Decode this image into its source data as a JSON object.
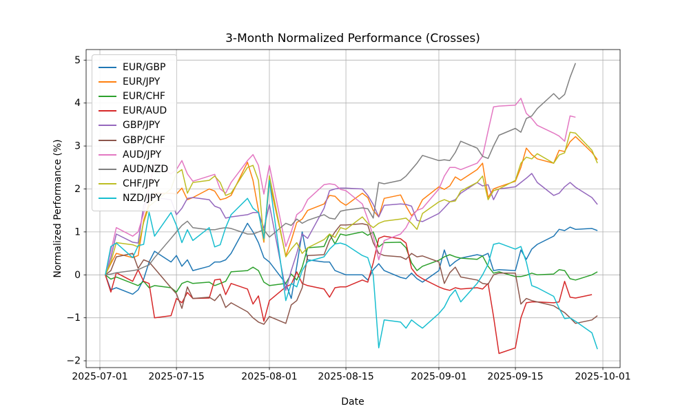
{
  "chart_data": {
    "type": "line",
    "title": "3-Month Normalized Performance (Crosses)",
    "xlabel": "Date",
    "ylabel": "Normalized Performance (%)",
    "grid": true,
    "legend_position": "upper left",
    "x_tick_labels": [
      "2025-07-01",
      "2025-07-15",
      "2025-08-01",
      "2025-08-15",
      "2025-09-01",
      "2025-09-15",
      "2025-10-01"
    ],
    "y_ticks": [
      -2,
      -1,
      0,
      1,
      2,
      3,
      4,
      5
    ],
    "ylim": [
      -2.16,
      5.25
    ],
    "dates": [
      "2025-07-02",
      "2025-07-03",
      "2025-07-04",
      "2025-07-07",
      "2025-07-08",
      "2025-07-09",
      "2025-07-10",
      "2025-07-11",
      "2025-07-14",
      "2025-07-15",
      "2025-07-16",
      "2025-07-17",
      "2025-07-18",
      "2025-07-21",
      "2025-07-22",
      "2025-07-23",
      "2025-07-24",
      "2025-07-25",
      "2025-07-28",
      "2025-07-29",
      "2025-07-30",
      "2025-07-31",
      "2025-08-01",
      "2025-08-04",
      "2025-08-05",
      "2025-08-06",
      "2025-08-07",
      "2025-08-08",
      "2025-08-11",
      "2025-08-12",
      "2025-08-13",
      "2025-08-14",
      "2025-08-15",
      "2025-08-18",
      "2025-08-19",
      "2025-08-20",
      "2025-08-21",
      "2025-08-22",
      "2025-08-25",
      "2025-08-26",
      "2025-08-27",
      "2025-08-28",
      "2025-08-29",
      "2025-09-01",
      "2025-09-02",
      "2025-09-03",
      "2025-09-04",
      "2025-09-05",
      "2025-09-08",
      "2025-09-09",
      "2025-09-10",
      "2025-09-11",
      "2025-09-12",
      "2025-09-15",
      "2025-09-16",
      "2025-09-17",
      "2025-09-18",
      "2025-09-19",
      "2025-09-22",
      "2025-09-23",
      "2025-09-24",
      "2025-09-25",
      "2025-09-26",
      "2025-09-29",
      "2025-09-30"
    ],
    "series": [
      {
        "name": "EUR/GBP",
        "color": "#1f77b4",
        "values": [
          0,
          -0.35,
          -0.3,
          -0.45,
          -0.35,
          -0.1,
          0.3,
          0.55,
          0.3,
          0.45,
          0.2,
          0.35,
          0.1,
          0.2,
          0.3,
          0.3,
          0.35,
          0.5,
          1.2,
          1.0,
          0.75,
          0.4,
          0.3,
          -0.2,
          -0.55,
          0.2,
          1.0,
          0.35,
          0.3,
          0.3,
          0.1,
          0.05,
          0.0,
          0.0,
          -0.12,
          0.12,
          0.26,
          0.1,
          -0.06,
          -0.09,
          0.04,
          -0.09,
          -0.17,
          0.1,
          0.58,
          0.2,
          0.31,
          0.39,
          0.47,
          0.44,
          0.5,
          0.1,
          0.12,
          0.1,
          0.58,
          0.36,
          0.6,
          0.71,
          0.9,
          1.06,
          1.03,
          1.11,
          1.06,
          1.08,
          1.03
        ]
      },
      {
        "name": "EUR/JPY",
        "color": "#ff7f0e",
        "values": [
          0,
          0.26,
          0.5,
          0.4,
          0.45,
          1.27,
          1.67,
          1.9,
          1.9,
          1.88,
          2.02,
          1.75,
          1.8,
          2.0,
          1.95,
          1.75,
          1.78,
          1.85,
          2.62,
          2.2,
          1.5,
          0.76,
          2.18,
          0.44,
          0.8,
          1.22,
          1.3,
          1.5,
          1.65,
          1.85,
          1.83,
          1.7,
          1.62,
          1.9,
          1.8,
          1.5,
          1.35,
          1.78,
          1.86,
          1.6,
          1.38,
          1.5,
          1.75,
          2.05,
          1.99,
          2.07,
          2.28,
          2.2,
          2.45,
          2.6,
          1.8,
          2.0,
          2.05,
          2.18,
          2.5,
          2.95,
          2.8,
          2.7,
          2.6,
          2.9,
          2.87,
          3.1,
          3.22,
          2.85,
          2.68
        ]
      },
      {
        "name": "EUR/CHF",
        "color": "#2ca02c",
        "values": [
          0,
          -0.1,
          -0.05,
          -0.2,
          -0.25,
          -0.15,
          -0.3,
          -0.25,
          -0.3,
          -0.4,
          -0.2,
          -0.15,
          -0.2,
          -0.17,
          -0.25,
          -0.2,
          -0.15,
          0.07,
          0.1,
          0.18,
          0.1,
          -0.17,
          -0.25,
          -0.2,
          0.02,
          -0.12,
          0.18,
          0.63,
          0.66,
          0.95,
          0.72,
          0.95,
          0.92,
          1.0,
          0.92,
          1.0,
          0.65,
          0.75,
          0.76,
          0.63,
          0.28,
          0.1,
          0.2,
          0.34,
          0.42,
          0.47,
          0.42,
          0.39,
          0.36,
          0.44,
          0.2,
          0.04,
          0.07,
          -0.04,
          -0.04,
          -0.01,
          0.04,
          0.0,
          0.02,
          0.12,
          0.1,
          -0.09,
          -0.12,
          0.0,
          0.07
        ]
      },
      {
        "name": "EUR/AUD",
        "color": "#d62728",
        "values": [
          0,
          -0.4,
          0.05,
          -0.15,
          0.12,
          -0.15,
          -0.2,
          -1.0,
          -0.95,
          -0.55,
          -0.65,
          -0.41,
          -0.55,
          -0.54,
          -0.12,
          -0.1,
          -0.46,
          -0.2,
          -0.33,
          -0.68,
          -0.49,
          -1.08,
          -0.6,
          -0.28,
          -0.22,
          0.07,
          -0.2,
          -0.25,
          -0.33,
          -0.52,
          -0.3,
          -0.28,
          -0.28,
          -0.12,
          -0.17,
          0.28,
          0.85,
          0.9,
          0.84,
          0.74,
          0.15,
          -0.01,
          -0.09,
          -0.28,
          -0.33,
          -0.36,
          -0.3,
          -0.33,
          -0.3,
          -0.33,
          -0.2,
          -0.97,
          -1.83,
          -1.7,
          -1.0,
          -0.65,
          -0.63,
          -0.63,
          -0.65,
          -0.63,
          -0.15,
          -0.52,
          -0.54,
          -0.46,
          null
        ]
      },
      {
        "name": "GBP/JPY",
        "color": "#9467bd",
        "values": [
          0,
          0.4,
          0.95,
          0.76,
          0.74,
          1.62,
          1.85,
          1.8,
          1.75,
          1.4,
          1.55,
          1.78,
          1.8,
          1.75,
          1.6,
          1.55,
          1.32,
          1.35,
          1.4,
          1.45,
          1.45,
          1.08,
          1.64,
          -0.36,
          0.1,
          0.5,
          0.95,
          0.85,
          1.55,
          1.96,
          2.0,
          2.02,
          2.02,
          2.0,
          1.85,
          1.64,
          1.35,
          1.62,
          1.65,
          1.64,
          1.6,
          1.27,
          1.24,
          1.43,
          1.56,
          1.7,
          1.75,
          1.9,
          2.15,
          2.07,
          2.1,
          1.75,
          2.0,
          2.05,
          2.15,
          2.25,
          2.36,
          2.15,
          1.85,
          1.9,
          2.05,
          2.15,
          2.04,
          1.8,
          1.64
        ]
      },
      {
        "name": "GBP/CHF",
        "color": "#8c564b",
        "values": [
          0,
          0.1,
          0.42,
          0.5,
          0.15,
          0.35,
          0.3,
          0.15,
          -0.3,
          -0.44,
          -0.78,
          -0.28,
          -0.55,
          -0.52,
          -0.6,
          -0.45,
          -0.76,
          -0.65,
          -0.86,
          -1.0,
          -1.1,
          -1.15,
          -0.97,
          -1.13,
          -0.7,
          -0.6,
          -0.3,
          0.45,
          0.47,
          0.8,
          1.0,
          1.16,
          1.16,
          1.19,
          1.16,
          0.75,
          0.5,
          0.45,
          0.42,
          0.36,
          0.5,
          0.42,
          0.44,
          0.3,
          -0.2,
          0.05,
          0.18,
          -0.05,
          -0.12,
          -0.2,
          -0.22,
          0.0,
          0.04,
          0.04,
          -0.68,
          -0.55,
          -0.6,
          -0.63,
          -0.72,
          -0.8,
          -0.88,
          -1.0,
          -1.13,
          -1.05,
          -0.95
        ]
      },
      {
        "name": "AUD/JPY",
        "color": "#e377c2",
        "values": [
          0,
          0.55,
          1.1,
          0.9,
          1.0,
          1.43,
          2.05,
          2.6,
          2.35,
          2.45,
          2.66,
          2.35,
          2.18,
          2.3,
          2.34,
          2.0,
          1.9,
          2.15,
          2.66,
          2.8,
          2.55,
          1.88,
          2.55,
          0.66,
          1.0,
          1.4,
          1.5,
          1.75,
          2.1,
          2.12,
          2.1,
          1.99,
          1.96,
          1.65,
          1.3,
          0.9,
          0.35,
          0.8,
          0.95,
          1.1,
          1.35,
          1.5,
          1.55,
          2.0,
          2.3,
          2.5,
          2.5,
          2.45,
          2.6,
          2.76,
          3.35,
          3.91,
          3.93,
          3.95,
          4.11,
          3.76,
          3.64,
          3.48,
          3.3,
          3.23,
          3.11,
          3.7,
          3.67,
          null,
          null
        ]
      },
      {
        "name": "AUD/NZD",
        "color": "#7f7f7f",
        "values": [
          0,
          0.02,
          0.05,
          0.1,
          0.12,
          0.18,
          0.23,
          0.4,
          0.85,
          1.0,
          1.15,
          1.25,
          1.1,
          1.05,
          1.05,
          1.08,
          1.1,
          1.08,
          0.95,
          0.95,
          1.0,
          1.05,
          0.88,
          1.2,
          1.15,
          1.3,
          1.2,
          1.27,
          1.4,
          1.32,
          1.3,
          1.48,
          1.51,
          1.56,
          1.54,
          1.32,
          2.15,
          2.12,
          2.2,
          2.3,
          2.45,
          2.6,
          2.78,
          2.66,
          2.68,
          2.66,
          2.85,
          3.11,
          2.95,
          2.76,
          2.71,
          3.0,
          3.25,
          3.41,
          3.32,
          3.64,
          3.7,
          3.87,
          4.22,
          4.09,
          4.2,
          4.6,
          4.93,
          null,
          null
        ]
      },
      {
        "name": "CHF/JPY",
        "color": "#bcbd22",
        "values": [
          0,
          0.3,
          0.75,
          0.7,
          0.65,
          1.22,
          1.6,
          1.7,
          2.0,
          2.36,
          2.45,
          1.9,
          2.15,
          2.2,
          2.3,
          2.15,
          1.85,
          1.9,
          2.5,
          2.55,
          2.2,
          0.8,
          2.31,
          0.42,
          0.6,
          0.75,
          0.5,
          0.63,
          0.82,
          0.95,
          0.87,
          1.1,
          1.06,
          1.35,
          1.2,
          1.1,
          1.2,
          1.25,
          1.3,
          1.32,
          1.2,
          1.06,
          1.43,
          1.7,
          1.75,
          1.7,
          1.72,
          1.95,
          2.15,
          2.3,
          1.75,
          1.96,
          2.0,
          2.2,
          2.6,
          2.74,
          2.7,
          2.82,
          2.6,
          2.79,
          2.84,
          3.32,
          3.3,
          2.9,
          2.6
        ]
      },
      {
        "name": "NZD/JPY",
        "color": "#17becf",
        "values": [
          0,
          0.66,
          0.74,
          0.4,
          0.68,
          0.71,
          1.46,
          0.9,
          1.45,
          1.15,
          0.75,
          1.05,
          0.8,
          1.1,
          0.65,
          0.7,
          1.1,
          1.4,
          1.78,
          1.55,
          1.45,
          0.85,
          2.2,
          -0.6,
          -0.2,
          -0.28,
          0.1,
          0.31,
          0.42,
          0.6,
          0.72,
          0.74,
          0.7,
          0.45,
          0.4,
          0.0,
          -1.7,
          -1.05,
          -1.1,
          -1.24,
          -1.05,
          -1.15,
          -1.24,
          -0.9,
          -0.75,
          -0.5,
          -0.35,
          -0.63,
          -0.2,
          0.0,
          0.25,
          0.71,
          0.74,
          0.6,
          0.66,
          0.3,
          -0.25,
          -0.3,
          -0.5,
          -0.78,
          -1.02,
          -1.0,
          -1.08,
          -1.35,
          -1.73
        ]
      }
    ]
  }
}
